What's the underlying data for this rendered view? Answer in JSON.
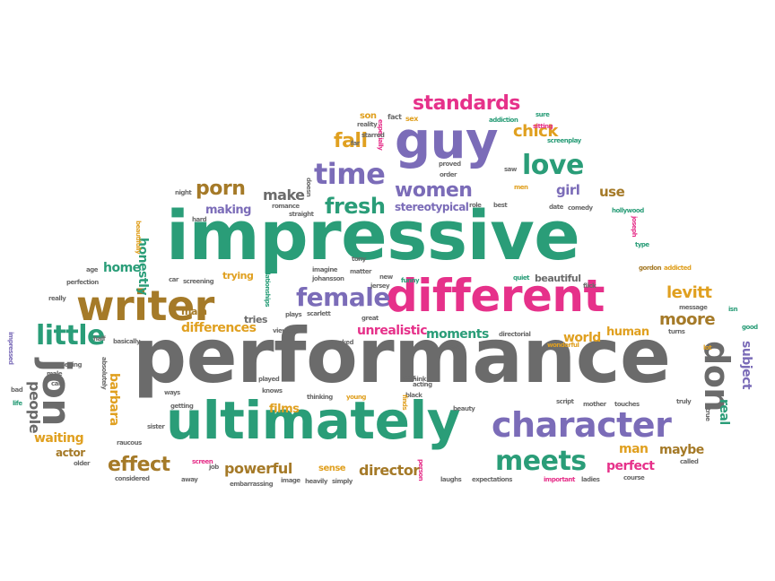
{
  "colors": {
    "green": "#2a9d78",
    "gray": "#6b6b6b",
    "purple": "#7b6cb8",
    "pink": "#e6318a",
    "gold": "#e0a020",
    "brown": "#a57a28",
    "blue": "#6a7ab8"
  },
  "words": [
    {
      "text": "performance",
      "color": "gray"
    },
    {
      "text": "impressive",
      "color": "green"
    },
    {
      "text": "ultimately",
      "color": "green"
    },
    {
      "text": "different",
      "color": "pink"
    },
    {
      "text": "writer",
      "color": "brown"
    },
    {
      "text": "character",
      "color": "purple"
    },
    {
      "text": "guy",
      "color": "purple"
    },
    {
      "text": "jon",
      "color": "gray"
    },
    {
      "text": "don",
      "color": "gray"
    },
    {
      "text": "love",
      "color": "green"
    },
    {
      "text": "time",
      "color": "purple"
    },
    {
      "text": "women",
      "color": "purple"
    },
    {
      "text": "female",
      "color": "purple"
    },
    {
      "text": "little",
      "color": "green"
    },
    {
      "text": "meets",
      "color": "green"
    },
    {
      "text": "fresh",
      "color": "green"
    },
    {
      "text": "porn",
      "color": "brown"
    },
    {
      "text": "fall",
      "color": "gold"
    },
    {
      "text": "standards",
      "color": "pink"
    },
    {
      "text": "chick",
      "color": "gold"
    },
    {
      "text": "effect",
      "color": "brown"
    },
    {
      "text": "powerful",
      "color": "brown"
    },
    {
      "text": "director",
      "color": "brown"
    },
    {
      "text": "barbara",
      "color": "gold"
    },
    {
      "text": "people",
      "color": "gray"
    },
    {
      "text": "honestly",
      "color": "green"
    },
    {
      "text": "make",
      "color": "gray"
    },
    {
      "text": "making",
      "color": "purple"
    },
    {
      "text": "girl",
      "color": "purple"
    },
    {
      "text": "use",
      "color": "brown"
    },
    {
      "text": "levitt",
      "color": "gold"
    },
    {
      "text": "moore",
      "color": "brown"
    },
    {
      "text": "world",
      "color": "gold"
    },
    {
      "text": "human",
      "color": "gold"
    },
    {
      "text": "unrealistic",
      "color": "pink"
    },
    {
      "text": "moments",
      "color": "green"
    },
    {
      "text": "differences",
      "color": "gold"
    },
    {
      "text": "home",
      "color": "green"
    },
    {
      "text": "waiting",
      "color": "gold"
    },
    {
      "text": "actor",
      "color": "brown"
    },
    {
      "text": "films",
      "color": "gold"
    },
    {
      "text": "subject",
      "color": "purple"
    },
    {
      "text": "real",
      "color": "green"
    },
    {
      "text": "maybe",
      "color": "brown"
    },
    {
      "text": "perfect",
      "color": "pink"
    },
    {
      "text": "man",
      "color": "gold"
    },
    {
      "text": "stereotypical",
      "color": "purple"
    },
    {
      "text": "beautiful",
      "color": "gray"
    },
    {
      "text": "trying",
      "color": "gold"
    },
    {
      "text": "main",
      "color": "brown"
    },
    {
      "text": "tries",
      "color": "gray"
    },
    {
      "text": "sense",
      "color": "gold"
    },
    {
      "text": "son",
      "color": "gold"
    },
    {
      "text": "sex",
      "color": "gold"
    },
    {
      "text": "fact",
      "color": "gray"
    },
    {
      "text": "especially",
      "color": "pink"
    },
    {
      "text": "starred",
      "color": "gray"
    },
    {
      "text": "reality",
      "color": "gray"
    },
    {
      "text": "far",
      "color": "gray"
    },
    {
      "text": "addiction",
      "color": "green"
    },
    {
      "text": "sure",
      "color": "green"
    },
    {
      "text": "screenplay",
      "color": "green"
    },
    {
      "text": "sitting",
      "color": "pink"
    },
    {
      "text": "hollywood",
      "color": "green"
    },
    {
      "text": "proved",
      "color": "gray"
    },
    {
      "text": "order",
      "color": "gray"
    },
    {
      "text": "saw",
      "color": "gray"
    },
    {
      "text": "men",
      "color": "gold"
    },
    {
      "text": "role",
      "color": "gray"
    },
    {
      "text": "best",
      "color": "gray"
    },
    {
      "text": "date",
      "color": "gray"
    },
    {
      "text": "comedy",
      "color": "gray"
    },
    {
      "text": "joseph",
      "color": "pink"
    },
    {
      "text": "type",
      "color": "green"
    },
    {
      "text": "gordon",
      "color": "brown"
    },
    {
      "text": "addicted",
      "color": "gold"
    },
    {
      "text": "message",
      "color": "gray"
    },
    {
      "text": "isn",
      "color": "green"
    },
    {
      "text": "good",
      "color": "green"
    },
    {
      "text": "turns",
      "color": "gray"
    },
    {
      "text": "lot",
      "color": "gold"
    },
    {
      "text": "flick",
      "color": "gray"
    },
    {
      "text": "quiet",
      "color": "green"
    },
    {
      "text": "johansson",
      "color": "gray"
    },
    {
      "text": "jersey",
      "color": "gray"
    },
    {
      "text": "new",
      "color": "gray"
    },
    {
      "text": "funny",
      "color": "green"
    },
    {
      "text": "tony",
      "color": "gray"
    },
    {
      "text": "matter",
      "color": "gray"
    },
    {
      "text": "imagine",
      "color": "gray"
    },
    {
      "text": "relationships",
      "color": "green"
    },
    {
      "text": "plays",
      "color": "gray"
    },
    {
      "text": "scarlett",
      "color": "gray"
    },
    {
      "text": "great",
      "color": "gray"
    },
    {
      "text": "worked",
      "color": "gray"
    },
    {
      "text": "say",
      "color": "gray"
    },
    {
      "text": "directorial",
      "color": "gray"
    },
    {
      "text": "wonderful",
      "color": "gold"
    },
    {
      "text": "played",
      "color": "gray"
    },
    {
      "text": "knows",
      "color": "gray"
    },
    {
      "text": "thinking",
      "color": "gray"
    },
    {
      "text": "young",
      "color": "gold"
    },
    {
      "text": "black",
      "color": "gray"
    },
    {
      "text": "acting",
      "color": "gray"
    },
    {
      "text": "think",
      "color": "gray"
    },
    {
      "text": "finds",
      "color": "gold"
    },
    {
      "text": "feels",
      "color": "gray"
    },
    {
      "text": "beauty",
      "color": "gray"
    },
    {
      "text": "script",
      "color": "gray"
    },
    {
      "text": "mother",
      "color": "gray"
    },
    {
      "text": "touches",
      "color": "gray"
    },
    {
      "text": "truly",
      "color": "gray"
    },
    {
      "text": "true",
      "color": "gray"
    },
    {
      "text": "called",
      "color": "gray"
    },
    {
      "text": "course",
      "color": "gray"
    },
    {
      "text": "important",
      "color": "pink"
    },
    {
      "text": "ladies",
      "color": "gray"
    },
    {
      "text": "expectations",
      "color": "gray"
    },
    {
      "text": "laughs",
      "color": "gray"
    },
    {
      "text": "person",
      "color": "pink"
    },
    {
      "text": "simply",
      "color": "gray"
    },
    {
      "text": "heavily",
      "color": "gray"
    },
    {
      "text": "image",
      "color": "gray"
    },
    {
      "text": "embarrassing",
      "color": "gray"
    },
    {
      "text": "job",
      "color": "gray"
    },
    {
      "text": "screen",
      "color": "pink"
    },
    {
      "text": "away",
      "color": "gray"
    },
    {
      "text": "considered",
      "color": "gray"
    },
    {
      "text": "sister",
      "color": "gray"
    },
    {
      "text": "raucous",
      "color": "gray"
    },
    {
      "text": "older",
      "color": "gray"
    },
    {
      "text": "ways",
      "color": "gray"
    },
    {
      "text": "getting",
      "color": "gray"
    },
    {
      "text": "absolutely",
      "color": "gray"
    },
    {
      "text": "seeing",
      "color": "gray"
    },
    {
      "text": "male",
      "color": "gray"
    },
    {
      "text": "care",
      "color": "gray"
    },
    {
      "text": "bad",
      "color": "gray"
    },
    {
      "text": "life",
      "color": "green"
    },
    {
      "text": "impressed",
      "color": "purple"
    },
    {
      "text": "half",
      "color": "gray"
    },
    {
      "text": "basically",
      "color": "gray"
    },
    {
      "text": "really",
      "color": "gray"
    },
    {
      "text": "perfection",
      "color": "gray"
    },
    {
      "text": "age",
      "color": "gray"
    },
    {
      "text": "car",
      "color": "gray"
    },
    {
      "text": "screening",
      "color": "gray"
    },
    {
      "text": "beautifully",
      "color": "gold"
    },
    {
      "text": "hard",
      "color": "gray"
    },
    {
      "text": "night",
      "color": "gray"
    },
    {
      "text": "romance",
      "color": "gray"
    },
    {
      "text": "straight",
      "color": "gray"
    },
    {
      "text": "doesn",
      "color": "gray"
    },
    {
      "text": "viewers",
      "color": "gray"
    }
  ]
}
